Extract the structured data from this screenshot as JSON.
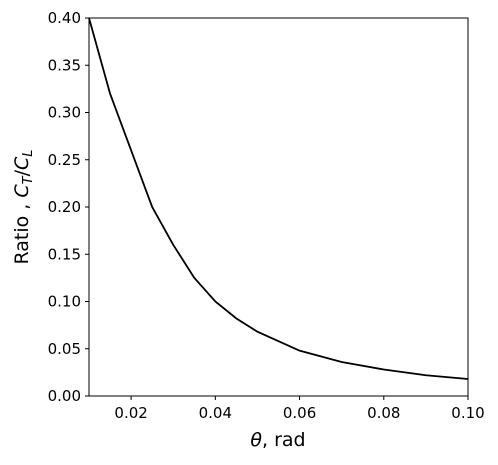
{
  "chart_data": {
    "type": "line",
    "xlabel": [
      "θ",
      ", rad"
    ],
    "ylabel": [
      "Ratio , ",
      "C",
      "T",
      "/",
      "C",
      "L"
    ],
    "x": [
      0.01,
      0.015,
      0.02,
      0.025,
      0.03,
      0.035,
      0.04,
      0.045,
      0.05,
      0.06,
      0.07,
      0.08,
      0.09,
      0.1
    ],
    "series": [
      {
        "color": "#000000",
        "values": [
          0.4,
          0.32,
          0.26,
          0.2,
          0.16,
          0.125,
          0.1,
          0.082,
          0.068,
          0.048,
          0.036,
          0.028,
          0.022,
          0.018
        ]
      }
    ],
    "xlim": [
      0.01,
      0.1
    ],
    "ylim": [
      0,
      0.4
    ],
    "xticks": [
      0.02,
      0.04,
      0.06,
      0.08,
      {
        "value": 0.1,
        "label": "0.10"
      }
    ],
    "yticks": [
      {
        "value": 0,
        "label": "0.00"
      },
      0.05,
      {
        "value": 0.1,
        "label": "0.10"
      },
      0.15,
      {
        "value": 0.2,
        "label": "0.20"
      },
      0.25,
      {
        "value": 0.3,
        "label": "0.30"
      },
      0.35,
      {
        "value": 0.4,
        "label": "0.40"
      }
    ],
    "grid": false
  }
}
